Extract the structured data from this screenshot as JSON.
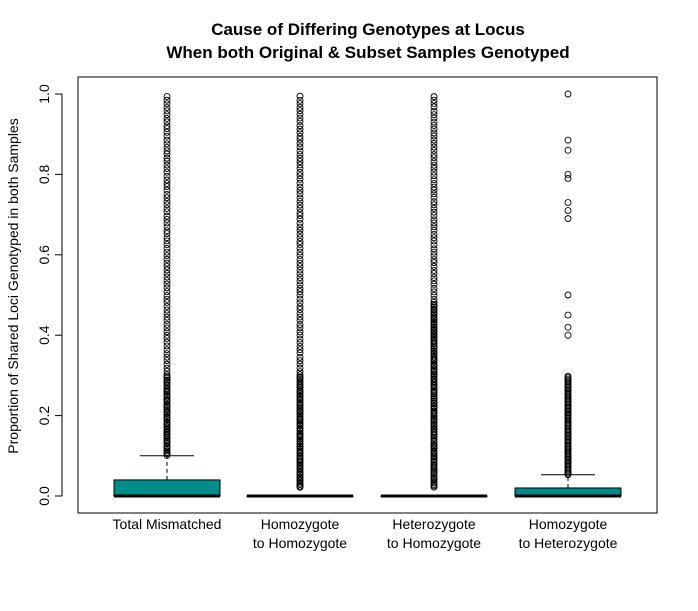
{
  "chart_data": {
    "type": "boxplot",
    "title": [
      "Cause of Differing Genotypes at Locus",
      "When both Original & Subset Samples Genotyped"
    ],
    "xlabel": "",
    "ylabel": "Proportion of Shared Loci Genotyped in both Samples",
    "ylim": [
      0,
      1
    ],
    "yticks": [
      "0.0",
      "0.2",
      "0.4",
      "0.6",
      "0.8",
      "1.0"
    ],
    "box_color": "#008B8B",
    "categories": [
      [
        "Total Mismatched"
      ],
      [
        "Homozygote",
        "to Homozygote"
      ],
      [
        "Heterozygote",
        "to Homozygote"
      ],
      [
        "Homozygote",
        "to Heterozygote"
      ]
    ],
    "series": [
      {
        "min": 0,
        "q1": 0,
        "median": 0,
        "q3": 0.04,
        "whisker_high": 0.1,
        "outlier_range": [
          0.1,
          1.0
        ],
        "outliers_extra": []
      },
      {
        "min": 0,
        "q1": 0,
        "median": 0,
        "q3": 0,
        "whisker_high": 0,
        "outlier_range": [
          0.02,
          1.0
        ],
        "outliers_extra": []
      },
      {
        "min": 0,
        "q1": 0,
        "median": 0,
        "q3": 0,
        "whisker_high": 0,
        "outlier_range": [
          0.02,
          1.0
        ],
        "outliers_extra": []
      },
      {
        "min": 0,
        "q1": 0,
        "median": 0,
        "q3": 0.02,
        "whisker_high": 0.053,
        "outlier_range": [
          0.053,
          0.3
        ],
        "outliers_extra": [
          0.4,
          0.42,
          0.45,
          0.5,
          0.69,
          0.71,
          0.73,
          0.79,
          0.8,
          0.86,
          0.885,
          1.0
        ]
      }
    ]
  }
}
